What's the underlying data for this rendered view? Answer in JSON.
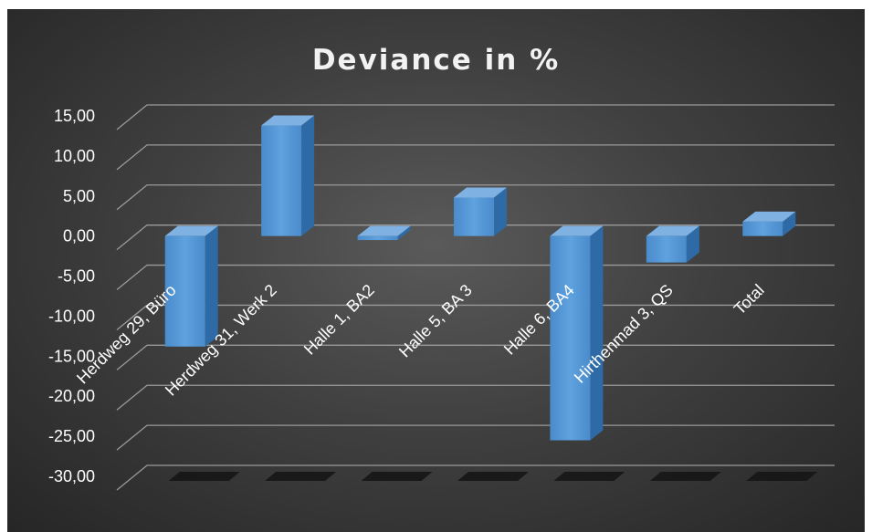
{
  "chart_data": {
    "type": "bar",
    "title": "Deviance in %",
    "categories": [
      "Herdweg 29, Büro",
      "Herdweg 31, Werk 2",
      "Halle 1, BA2",
      "Halle 5, BA 3",
      "Halle 6, BA4",
      "Hirthenmad 3, QS",
      "Total"
    ],
    "values": [
      -13.8,
      13.8,
      -0.5,
      4.8,
      -25.5,
      -3.3,
      1.8
    ],
    "ylim": [
      -30,
      15
    ],
    "yticks": [
      "15,00",
      "10,00",
      "5,00",
      "0,00",
      "-5,00",
      "-10,00",
      "-15,00",
      "-20,00",
      "-25,00",
      "-30,00"
    ],
    "grid": true,
    "legend": false,
    "colors": {
      "bar_front": "#5b9bd5",
      "bar_side": "#2e6aa6",
      "bar_top": "#7fb2e3",
      "background": "#404040",
      "grid": "#9a9a9a"
    }
  }
}
